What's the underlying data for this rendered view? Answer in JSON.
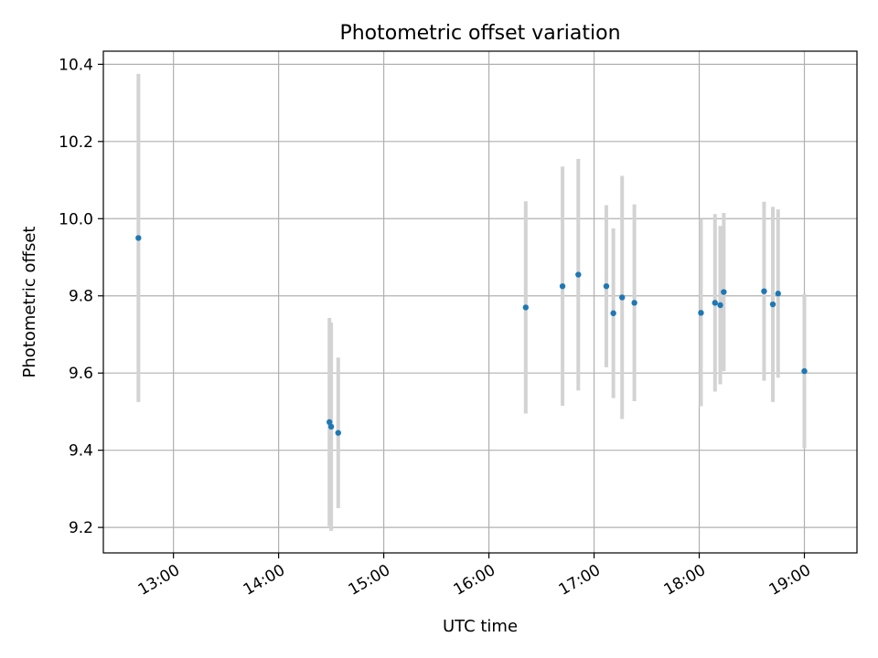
{
  "chart_data": {
    "type": "scatter",
    "title": "Photometric offset variation",
    "xlabel": "UTC time",
    "ylabel": "Photometric offset",
    "grid": true,
    "legend": "none",
    "xlim": [
      "12:20",
      "19:30"
    ],
    "ylim": [
      9.134,
      10.434
    ],
    "x_ticks": [
      "13:00",
      "14:00",
      "15:00",
      "16:00",
      "17:00",
      "18:00",
      "19:00"
    ],
    "y_ticks": [
      "9.2",
      "9.4",
      "9.6",
      "9.8",
      "10.0",
      "10.2",
      "10.4"
    ],
    "colors": {
      "point": "#1f77b4",
      "errorbar": "#d3d3d3",
      "grid": "#b0b0b0"
    },
    "series": [
      {
        "x": [
          "12:40",
          "14:29",
          "14:30",
          "14:34",
          "16:21",
          "16:42",
          "16:51",
          "17:07",
          "17:11",
          "17:16",
          "17:23",
          "18:01",
          "18:09",
          "18:12",
          "18:14",
          "18:37",
          "18:42",
          "18:45",
          "19:00"
        ],
        "y": [
          9.95,
          9.473,
          9.461,
          9.445,
          9.77,
          9.825,
          9.855,
          9.825,
          9.755,
          9.796,
          9.782,
          9.756,
          9.782,
          9.776,
          9.81,
          9.812,
          9.778,
          9.806,
          9.605
        ],
        "yerr": [
          0.425,
          0.27,
          0.27,
          0.195,
          0.275,
          0.31,
          0.3,
          0.21,
          0.22,
          0.315,
          0.255,
          0.242,
          0.23,
          0.205,
          0.205,
          0.232,
          0.253,
          0.218,
          0.2
        ]
      }
    ]
  }
}
